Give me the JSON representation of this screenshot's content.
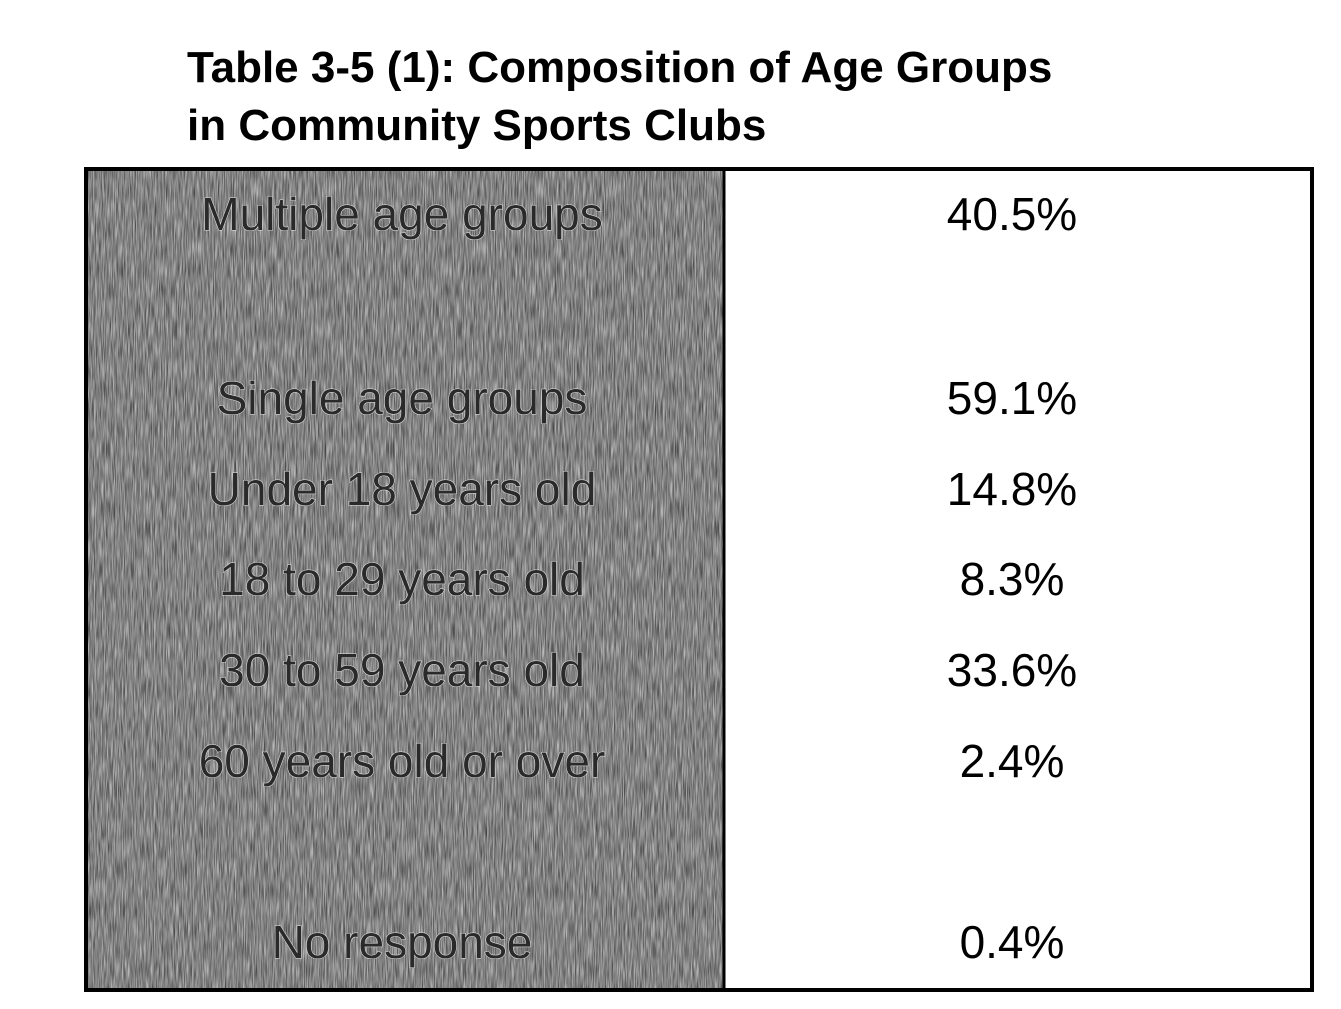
{
  "title": [
    "Table 3-5 (1): Composition of Age Groups",
    "in Community Sports Clubs"
  ],
  "table": {
    "rows": [
      [
        "Multiple age groups",
        "40.5%"
      ],
      [
        "Single age groups",
        "59.1%"
      ],
      [
        "Under 18 years old",
        "14.8%"
      ],
      [
        "18 to 29 years old",
        "8.3%"
      ],
      [
        "30 to 59 years old",
        "33.6%"
      ],
      [
        "60 years old or over",
        "2.4%"
      ],
      [
        "No response",
        "0.4%"
      ]
    ]
  }
}
